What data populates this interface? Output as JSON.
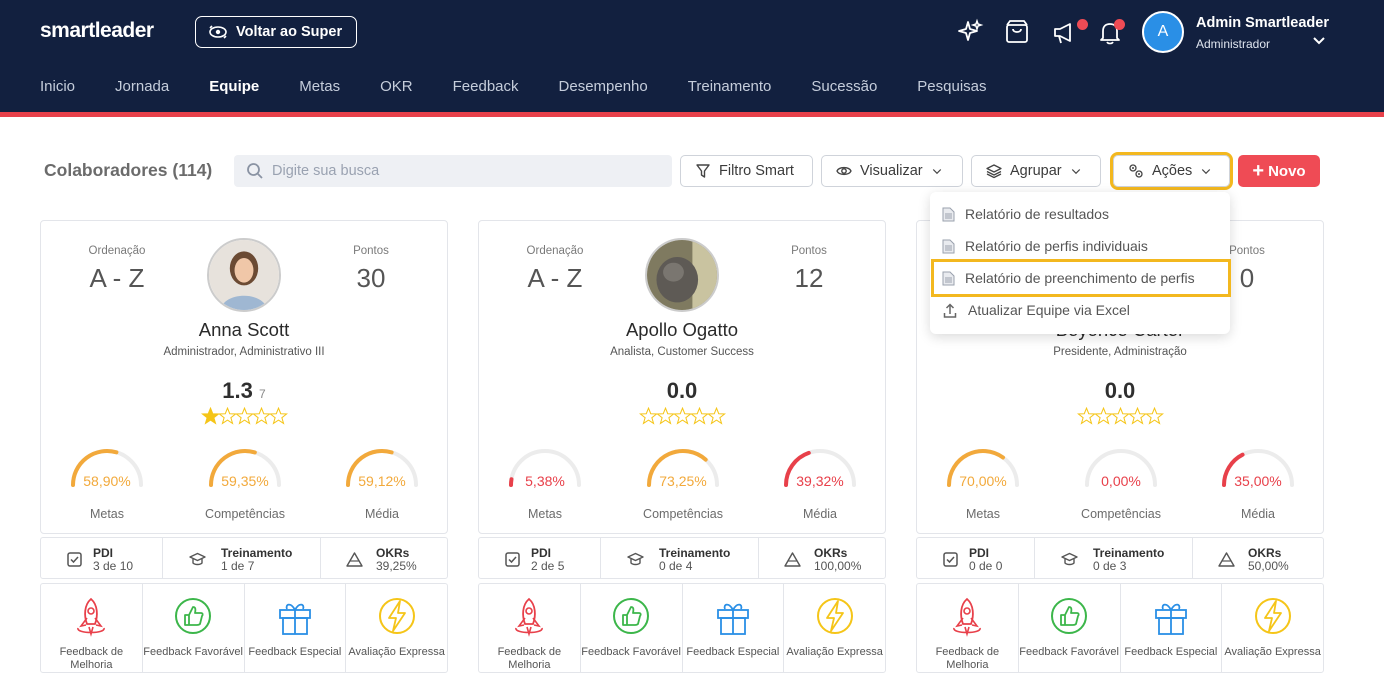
{
  "app": {
    "logo": "smartleader",
    "back_button": "Voltar ao Super",
    "user_initial": "A",
    "user_name": "Admin Smartleader",
    "user_role": "Administrador"
  },
  "nav": [
    "Inicio",
    "Jornada",
    "Equipe",
    "Metas",
    "OKR",
    "Feedback",
    "Desempenho",
    "Treinamento",
    "Sucessão",
    "Pesquisas"
  ],
  "nav_active": "Equipe",
  "toolbar": {
    "title": "Colaboradores (114)",
    "search_placeholder": "Digite sua busca",
    "filtro": "Filtro Smart",
    "visualizar": "Visualizar",
    "agrupar": "Agrupar",
    "acoes": "Ações",
    "novo": "Novo"
  },
  "dropdown": {
    "items": [
      "Relatório de resultados",
      "Relatório de perfis individuais",
      "Relatório de preenchimento de perfis",
      "Atualizar Equipe via Excel"
    ],
    "selected_index": 2
  },
  "card_labels": {
    "ordenacao": "Ordenação",
    "pontos": "Pontos",
    "metas": "Metas",
    "competencias": "Competências",
    "media": "Média",
    "pdi": "PDI",
    "treinamento": "Treinamento",
    "okrs": "OKRs",
    "acts": [
      "Feedback de Melhoria",
      "Feedback Favorável",
      "Feedback Especial",
      "Avaliação Expressa"
    ]
  },
  "cards": [
    {
      "ordenacao": "A - Z",
      "pontos": "30",
      "name": "Anna Scott",
      "role": "Administrador, Administrativo III",
      "score": "1.3",
      "score_sub": "7",
      "stars": 1,
      "metas": "58,90%",
      "metas_v": 0.589,
      "comp": "59,35%",
      "comp_v": 0.5935,
      "media": "59,12%",
      "media_v": 0.5912,
      "pdi": "3 de 10",
      "treinamento": "1 de 7",
      "okrs": "39,25%"
    },
    {
      "ordenacao": "A - Z",
      "pontos": "12",
      "name": "Apollo Ogatto",
      "role": "Analista, Customer Success",
      "score": "0.0",
      "score_sub": "",
      "stars": 0,
      "metas": "5,38%",
      "metas_v": 0.0538,
      "comp": "73,25%",
      "comp_v": 0.7325,
      "media": "39,32%",
      "media_v": 0.3932,
      "pdi": "2 de 5",
      "treinamento": "0 de 4",
      "okrs": "100,00%"
    },
    {
      "ordenacao": "",
      "pontos": "0",
      "name": "Beyonce Carter",
      "role": "Presidente, Administração",
      "score": "0.0",
      "score_sub": "",
      "stars": 0,
      "metas": "70,00%",
      "metas_v": 0.7,
      "comp": "0,00%",
      "comp_v": 0,
      "media": "35,00%",
      "media_v": 0.35,
      "pdi": "0 de 0",
      "treinamento": "0 de 3",
      "okrs": "50,00%"
    }
  ],
  "colors": {
    "header": "#12203f",
    "accent": "#ef4b55",
    "orange": "#f2a93b",
    "red": "#e8404a",
    "highlight": "#f3b81f",
    "green": "#3cb64a",
    "blue": "#2a8fe6",
    "yellow": "#f5c518"
  }
}
